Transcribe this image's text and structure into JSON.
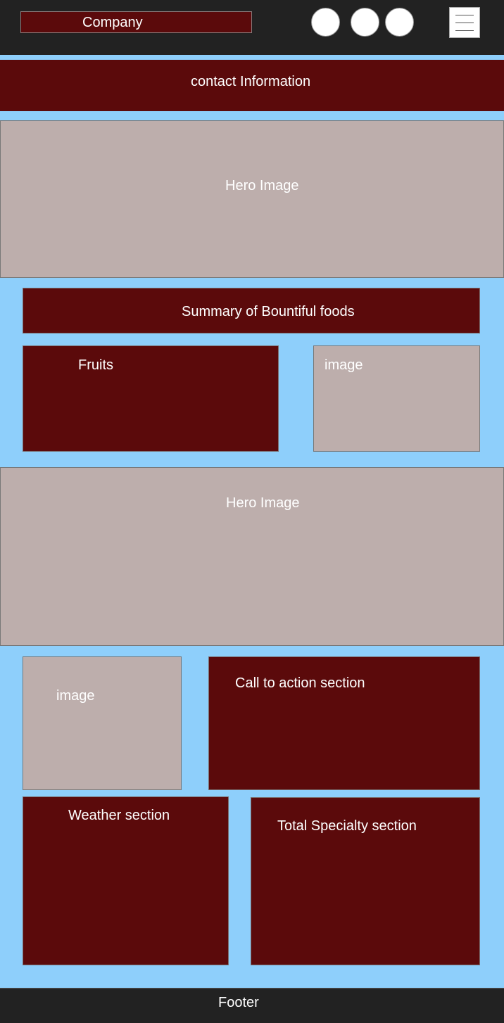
{
  "header": {
    "company_label": "Company",
    "social_icons": [
      "social-icon-1",
      "social-icon-2",
      "social-icon-3"
    ],
    "menu_icon": "hamburger-menu-icon"
  },
  "contact_bar": {
    "label": "contact Information"
  },
  "hero_top": {
    "label": "Hero Image"
  },
  "summary": {
    "label": "Summary of Bountiful foods"
  },
  "fruits": {
    "label": "Fruits"
  },
  "fruits_image": {
    "label": "image"
  },
  "hero_middle": {
    "label": "Hero Image"
  },
  "cta_image": {
    "label": "image"
  },
  "cta": {
    "label": "Call to action section"
  },
  "weather": {
    "label": "Weather section"
  },
  "specialty": {
    "label": "Total Specialty section"
  },
  "footer": {
    "label": "Footer"
  },
  "colors": {
    "background": "#8ecffb",
    "header": "#222222",
    "maroon": "#5b0a0b",
    "placeholder_gray": "#bdaeac",
    "text": "#ffffff"
  }
}
